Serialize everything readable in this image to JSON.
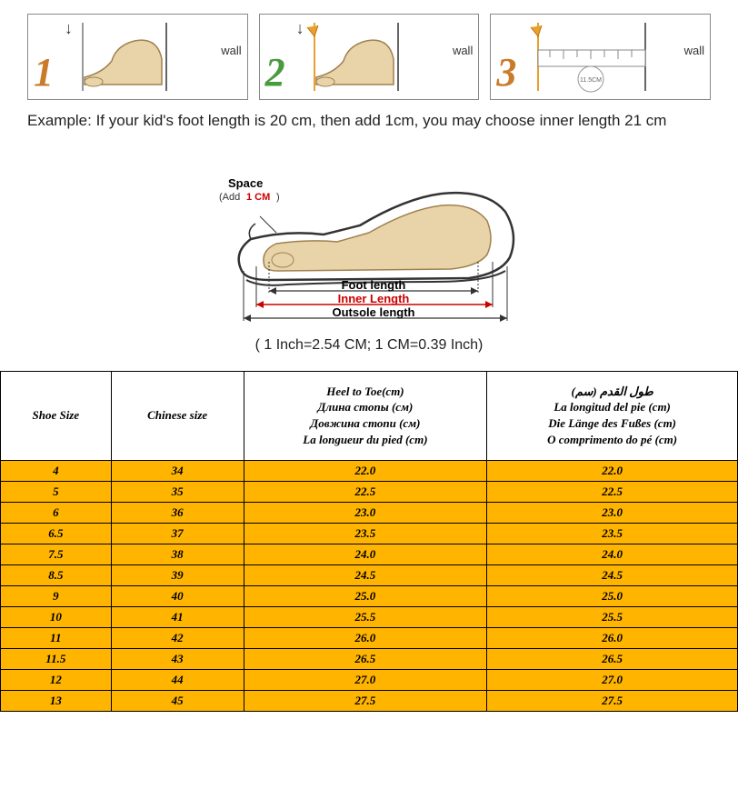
{
  "steps": {
    "step1_num": "1",
    "step2_num": "2",
    "step3_num": "3",
    "wall_label": "wall",
    "ruler_text": "11.5CM"
  },
  "example_text": "Example: If your kid's foot length is 20 cm, then add 1cm, you may choose inner length 21 cm",
  "diagram": {
    "space_label": "Space",
    "space_sub": "(Add 1 CM)",
    "foot_length": "Foot length",
    "inner_length": "Inner Length",
    "outsole_length": "Outsole length"
  },
  "conversion": "( 1 Inch=2.54 CM; 1 CM=0.39 Inch)",
  "table": {
    "headers": {
      "col1": "Shoe Size",
      "col2": "Chinese size",
      "col3_l1": "Heel to Toe(cm)",
      "col3_l2": "Длина стопы (см)",
      "col3_l3": "Довжина стопи (см)",
      "col3_l4": "La longueur du pied (cm)",
      "col4_l1": "(طول القدم (سم",
      "col4_l2": "La longitud del pie (cm)",
      "col4_l3": "Die Länge des Fußes (cm)",
      "col4_l4": "O comprimento do pé (cm)"
    },
    "rows": [
      {
        "c1": "4",
        "c2": "34",
        "c3": "22.0",
        "c4": "22.0"
      },
      {
        "c1": "5",
        "c2": "35",
        "c3": "22.5",
        "c4": "22.5"
      },
      {
        "c1": "6",
        "c2": "36",
        "c3": "23.0",
        "c4": "23.0"
      },
      {
        "c1": "6.5",
        "c2": "37",
        "c3": "23.5",
        "c4": "23.5"
      },
      {
        "c1": "7.5",
        "c2": "38",
        "c3": "24.0",
        "c4": "24.0"
      },
      {
        "c1": "8.5",
        "c2": "39",
        "c3": "24.5",
        "c4": "24.5"
      },
      {
        "c1": "9",
        "c2": "40",
        "c3": "25.0",
        "c4": "25.0"
      },
      {
        "c1": "10",
        "c2": "41",
        "c3": "25.5",
        "c4": "25.5"
      },
      {
        "c1": "11",
        "c2": "42",
        "c3": "26.0",
        "c4": "26.0"
      },
      {
        "c1": "11.5",
        "c2": "43",
        "c3": "26.5",
        "c4": "26.5"
      },
      {
        "c1": "12",
        "c2": "44",
        "c3": "27.0",
        "c4": "27.0"
      },
      {
        "c1": "13",
        "c2": "45",
        "c3": "27.5",
        "c4": "27.5"
      }
    ]
  },
  "colors": {
    "row_bg": "#ffb400",
    "border": "#000000",
    "inner_length_color": "#cc0000"
  }
}
